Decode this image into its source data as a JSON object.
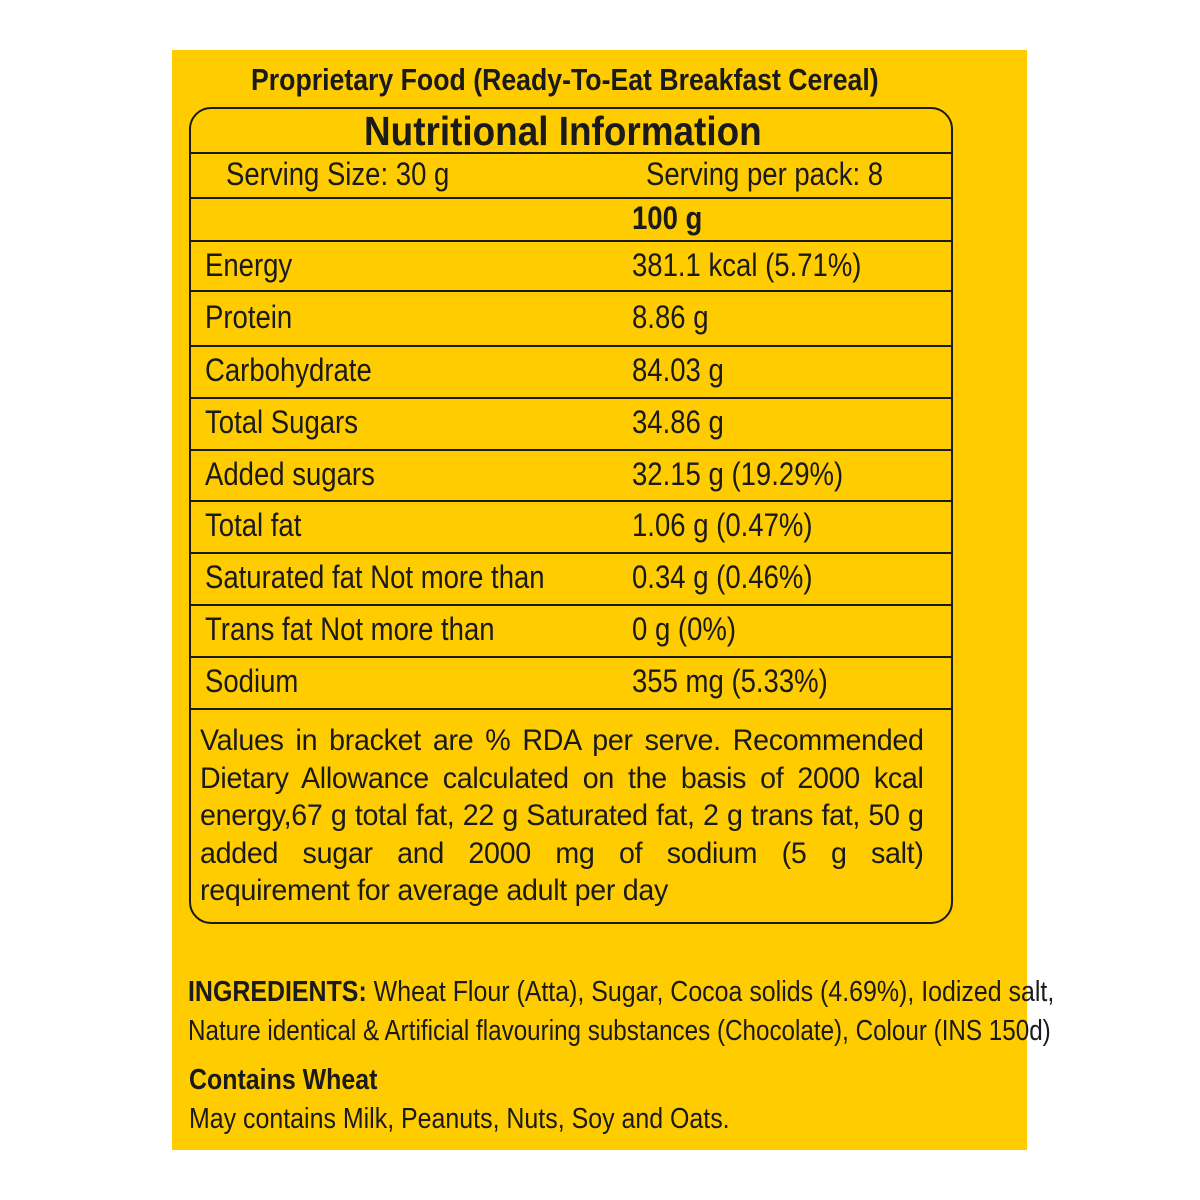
{
  "header": {
    "product_type": "Proprietary Food (Ready-To-Eat Breakfast Cereal)"
  },
  "nutrition": {
    "title": "Nutritional Information",
    "serving_size": "Serving Size:  30 g",
    "servings_per_pack": "Serving per pack: 8",
    "column_header": "100 g",
    "rows": [
      {
        "label": "Energy",
        "value": "381.1 kcal (5.71%)"
      },
      {
        "label": "Protein",
        "value": "8.86 g"
      },
      {
        "label": "Carbohydrate",
        "value": "84.03 g"
      },
      {
        "label": "Total Sugars",
        "value": "34.86 g"
      },
      {
        "label": "Added sugars",
        "value": "32.15 g (19.29%)"
      },
      {
        "label": "Total fat",
        "value": "1.06 g (0.47%)"
      },
      {
        "label": "Saturated fat Not more than",
        "value": "0.34 g (0.46%)"
      },
      {
        "label": "Trans fat Not more than",
        "value": "0 g (0%)"
      },
      {
        "label": "Sodium",
        "value": "355 mg (5.33%)"
      }
    ],
    "note": "Values in bracket are % RDA per serve. Recommended Dietary Allowance calculated on the basis of 2000 kcal energy,67 g total fat, 22 g Saturated fat, 2 g trans fat, 50 g added sugar and 2000 mg of sodium (5 g salt) requirement for average adult per day"
  },
  "ingredients": {
    "label": "INGREDIENTS:",
    "line1": "Wheat Flour (Atta), Sugar, Cocoa solids (4.69%), Iodized salt,",
    "line2": "Nature identical & Artificial flavouring substances (Chocolate), Colour (INS 150d)"
  },
  "allergens": {
    "contains": "Contains Wheat",
    "may_contain": "May contains Milk, Peanuts, Nuts, Soy and Oats."
  },
  "colors": {
    "background": "#FFCC00",
    "text": "#1a1a1a"
  }
}
